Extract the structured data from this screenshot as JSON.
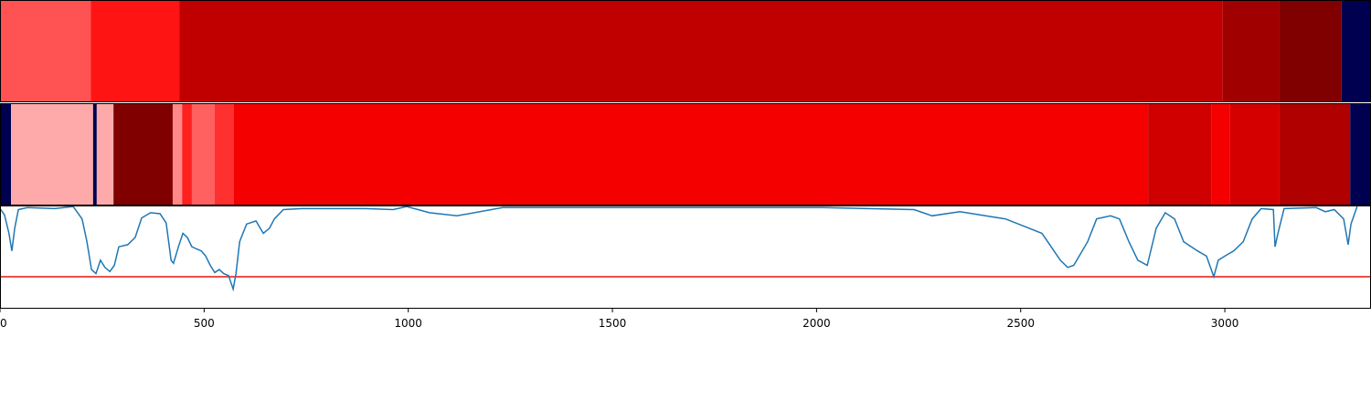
{
  "chart_data": {
    "type": "line",
    "xlim": [
      0,
      3358
    ],
    "xticks": [
      0,
      500,
      1000,
      1500,
      2000,
      2500,
      3000
    ],
    "ylim": [
      0,
      1
    ],
    "color": "#1f77b4",
    "x": [
      0,
      11,
      22,
      29,
      36,
      45,
      67,
      134,
      179,
      201,
      213,
      224,
      235,
      246,
      257,
      269,
      280,
      291,
      313,
      331,
      347,
      369,
      392,
      407,
      419,
      425,
      437,
      448,
      459,
      470,
      481,
      493,
      504,
      515,
      526,
      537,
      548,
      560,
      571,
      578,
      587,
      604,
      627,
      645,
      660,
      672,
      694,
      739,
      895,
      963,
      996,
      1052,
      1119,
      1231,
      1567,
      2015,
      2239,
      2283,
      2351,
      2463,
      2552,
      2597,
      2615,
      2630,
      2664,
      2686,
      2720,
      2742,
      2765,
      2787,
      2810,
      2832,
      2854,
      2877,
      2899,
      2933,
      2955,
      2973,
      2984,
      3000,
      3022,
      3045,
      3067,
      3089,
      3119,
      3123,
      3130,
      3145,
      3224,
      3246,
      3268,
      3291,
      3302,
      3309,
      3324
    ],
    "values": [
      0.97,
      0.91,
      0.73,
      0.56,
      0.78,
      0.96,
      0.98,
      0.97,
      0.99,
      0.87,
      0.65,
      0.38,
      0.34,
      0.47,
      0.4,
      0.36,
      0.42,
      0.6,
      0.62,
      0.69,
      0.88,
      0.93,
      0.92,
      0.83,
      0.47,
      0.44,
      0.6,
      0.73,
      0.69,
      0.6,
      0.58,
      0.56,
      0.51,
      0.42,
      0.35,
      0.38,
      0.34,
      0.32,
      0.19,
      0.34,
      0.65,
      0.82,
      0.85,
      0.73,
      0.78,
      0.87,
      0.96,
      0.97,
      0.97,
      0.96,
      0.99,
      0.93,
      0.9,
      0.98,
      0.98,
      0.98,
      0.96,
      0.9,
      0.94,
      0.87,
      0.73,
      0.47,
      0.4,
      0.42,
      0.65,
      0.87,
      0.9,
      0.87,
      0.65,
      0.47,
      0.42,
      0.78,
      0.93,
      0.87,
      0.65,
      0.56,
      0.51,
      0.31,
      0.47,
      0.51,
      0.56,
      0.65,
      0.87,
      0.97,
      0.96,
      0.6,
      0.73,
      0.97,
      0.98,
      0.94,
      0.96,
      0.87,
      0.62,
      0.82,
      0.99
    ],
    "threshold": {
      "value": 0.31,
      "color": "#e8140f"
    },
    "strips": [
      {
        "segments": [
          {
            "start": 0,
            "end": 222,
            "color": "#ff5252"
          },
          {
            "start": 222,
            "end": 439,
            "color": "#ff1414"
          },
          {
            "start": 439,
            "end": 2995,
            "color": "#c00000"
          },
          {
            "start": 2995,
            "end": 3134,
            "color": "#a00000"
          },
          {
            "start": 3134,
            "end": 3286,
            "color": "#800000"
          },
          {
            "start": 3286,
            "end": 3358,
            "color": "#000050"
          }
        ]
      },
      {
        "segments": [
          {
            "start": 0,
            "end": 27,
            "color": "#000050"
          },
          {
            "start": 27,
            "end": 228,
            "color": "#ffaaaa"
          },
          {
            "start": 228,
            "end": 237,
            "color": "#000050"
          },
          {
            "start": 237,
            "end": 278,
            "color": "#ffaaaa"
          },
          {
            "start": 278,
            "end": 423,
            "color": "#800000"
          },
          {
            "start": 423,
            "end": 446,
            "color": "#ff8888"
          },
          {
            "start": 446,
            "end": 470,
            "color": "#ff2020"
          },
          {
            "start": 470,
            "end": 526,
            "color": "#ff6060"
          },
          {
            "start": 526,
            "end": 573,
            "color": "#ff3030"
          },
          {
            "start": 573,
            "end": 2812,
            "color": "#f50000"
          },
          {
            "start": 2812,
            "end": 2968,
            "color": "#d00000"
          },
          {
            "start": 2968,
            "end": 3013,
            "color": "#f50000"
          },
          {
            "start": 3013,
            "end": 3134,
            "color": "#d40000"
          },
          {
            "start": 3134,
            "end": 3307,
            "color": "#b00000"
          },
          {
            "start": 3307,
            "end": 3358,
            "color": "#000050"
          }
        ]
      }
    ]
  }
}
